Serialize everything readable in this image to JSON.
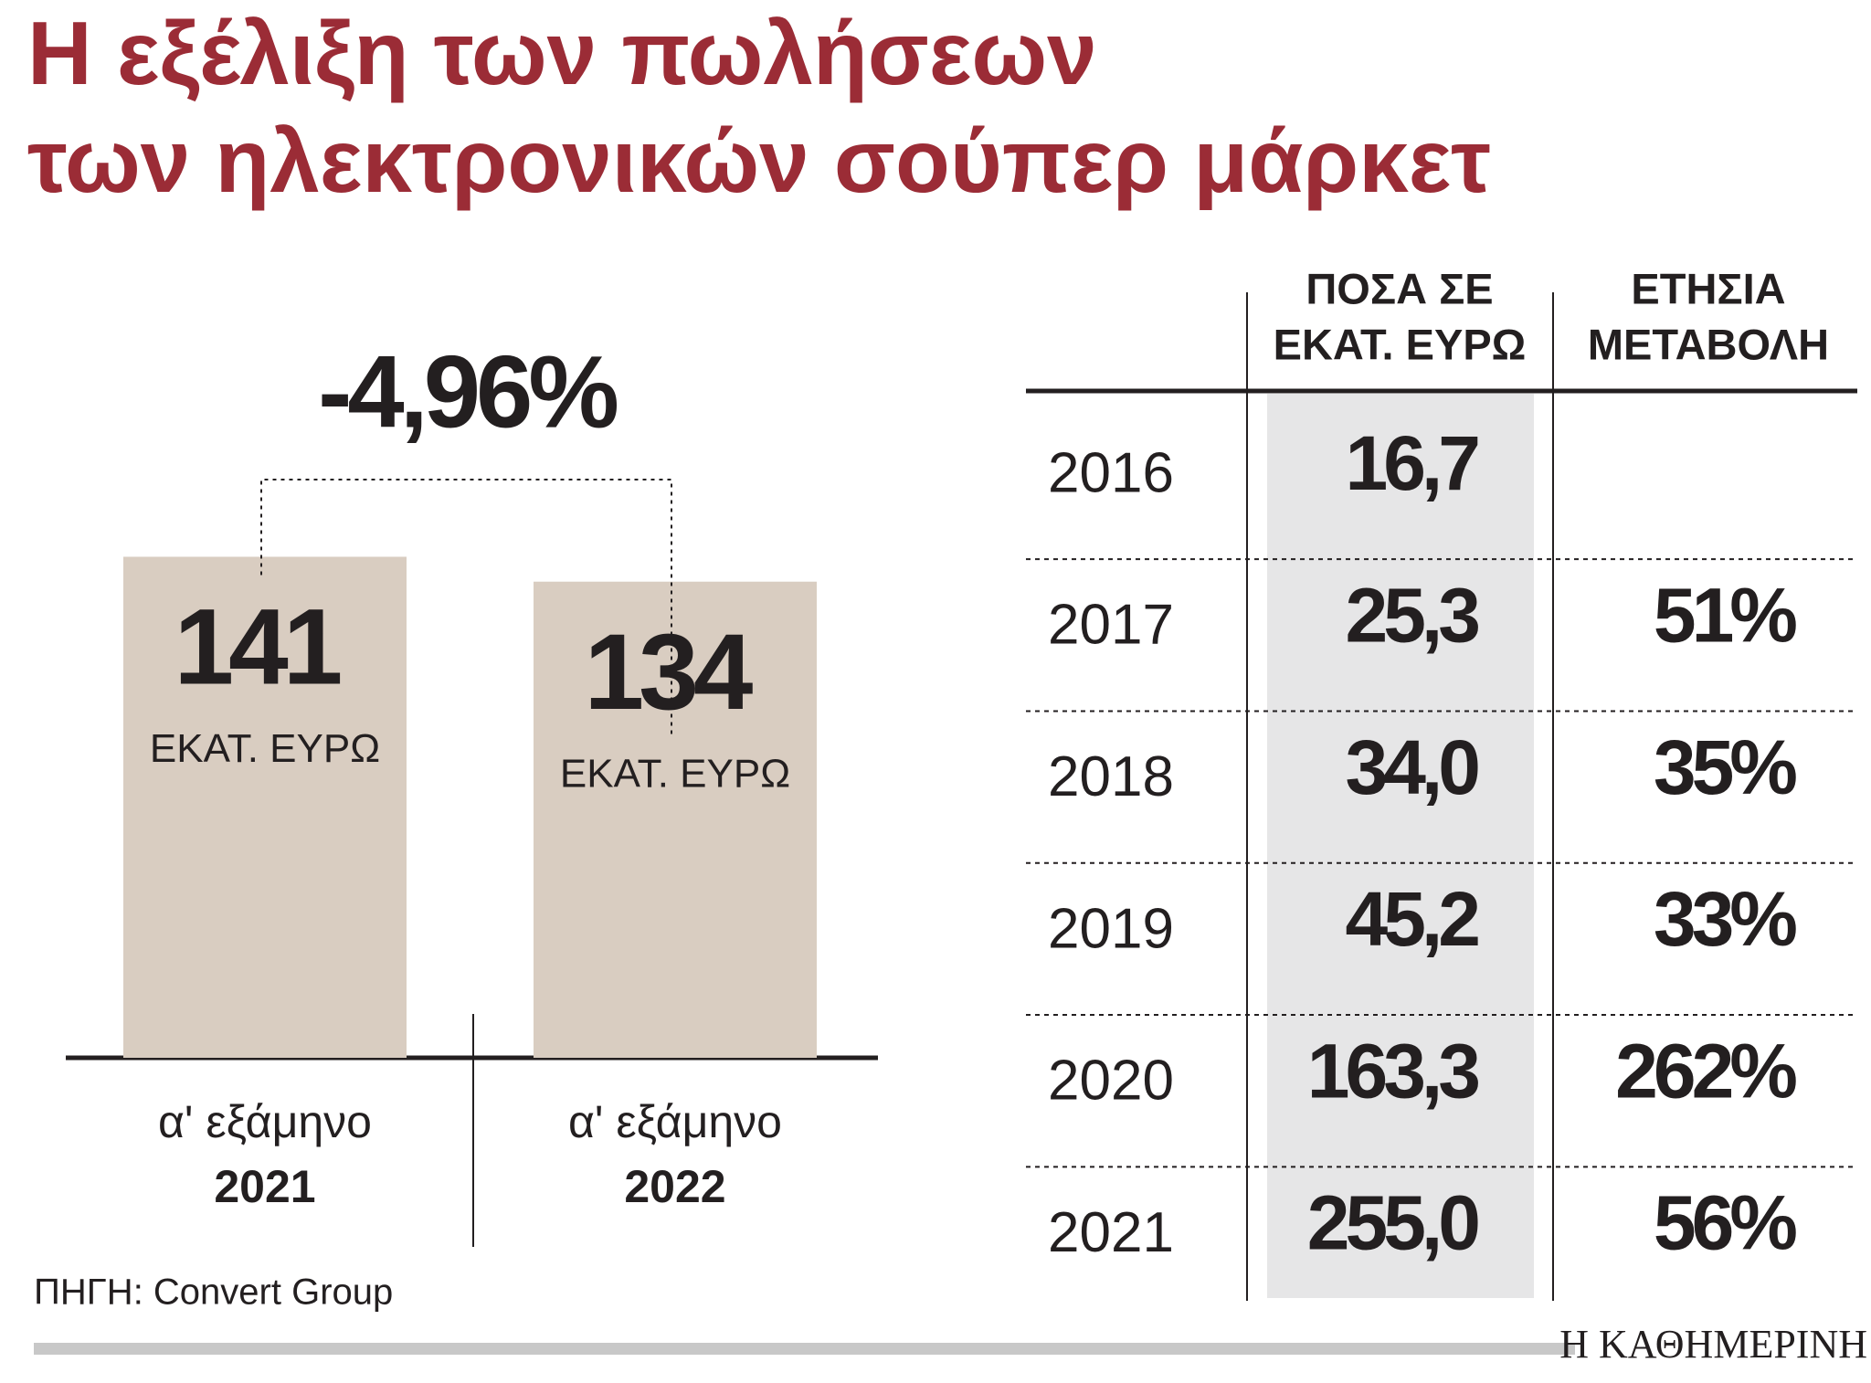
{
  "title": [
    "Η εξέλιξη των πωλήσεων",
    "των ηλεκτρονικών σούπερ μάρκετ"
  ],
  "chart_data": {
    "type": "bar",
    "categories": [
      {
        "period": "α' εξάμηνο",
        "year": "2021"
      },
      {
        "period": "α' εξάμηνο",
        "year": "2022"
      }
    ],
    "values": [
      141,
      134
    ],
    "unit": "ΕΚΑΤ. ΕΥΡΩ",
    "color": "#d9cdc1",
    "value_color": "#9b2c36",
    "change": "-4,96%"
  },
  "table": {
    "headers": [
      [
        "ΠΟΣΑ ΣΕ",
        "ΕΚΑΤ. ΕΥΡΩ"
      ],
      [
        "ΕΤΗΣΙΑ",
        "ΜΕΤΑΒΟΛΗ"
      ]
    ],
    "rows": [
      {
        "year": "2016",
        "amount": "16,7"
      },
      {
        "year": "2017",
        "amount": "25,3",
        "change": "51%"
      },
      {
        "year": "2018",
        "amount": "34,0",
        "change": "35%"
      },
      {
        "year": "2019",
        "amount": "45,2",
        "change": "33%"
      },
      {
        "year": "2020",
        "amount": "163,3",
        "change": "262%"
      },
      {
        "year": "2021",
        "amount": "255,0",
        "change": "56%"
      }
    ]
  },
  "source": "ΠΗΓΗ: Convert Group",
  "brand": "Η ΚΑΘΗΜΕΡΙΝΗ"
}
